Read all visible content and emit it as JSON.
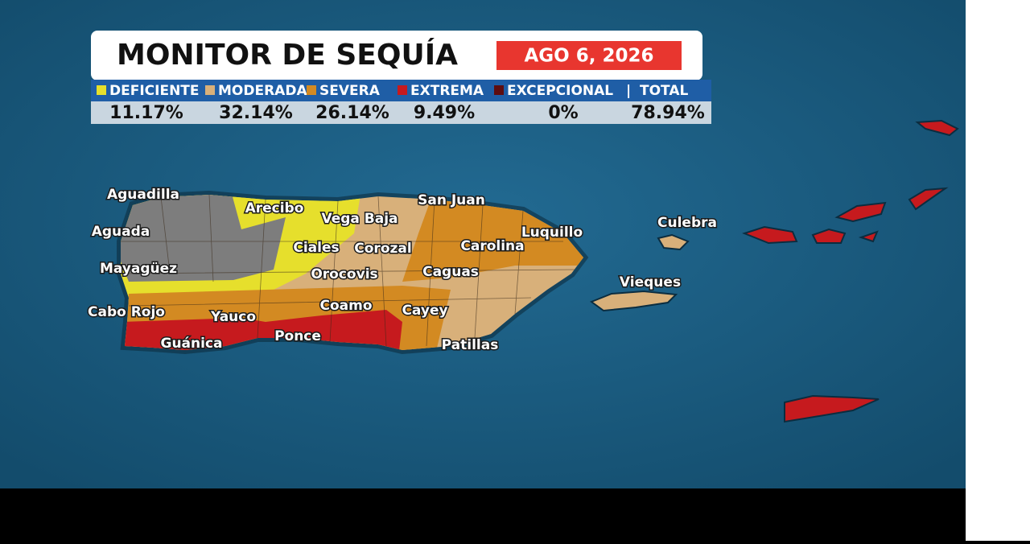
{
  "header": {
    "title": "MONITOR DE SEQUÍA",
    "date": "AGO 6, 2026"
  },
  "legend": {
    "items": [
      {
        "label": "DEFICIENTE",
        "color": "#e6df2c",
        "value": "11.17%"
      },
      {
        "label": "MODERADA",
        "color": "#d8b07a",
        "value": "32.14%"
      },
      {
        "label": "SEVERA",
        "color": "#d38a22",
        "value": "26.14%"
      },
      {
        "label": "EXTREMA",
        "color": "#c61a1e",
        "value": "9.49%"
      },
      {
        "label": "EXCEPCIONAL",
        "color": "#5e0d10",
        "value": "0%"
      }
    ],
    "separator": "|",
    "total": {
      "label": "TOTAL",
      "value": "78.94%"
    }
  },
  "places": [
    "Aguadilla",
    "Aguada",
    "Mayagüez",
    "Cabo Rojo",
    "Guánica",
    "Yauco",
    "Ponce",
    "Coamo",
    "Cayey",
    "Patillas",
    "Arecibo",
    "Vega Baja",
    "Ciales",
    "Corozal",
    "Orocovis",
    "Caguas",
    "Carolina",
    "San Juan",
    "Luquillo",
    "Culebra",
    "Vieques"
  ]
}
